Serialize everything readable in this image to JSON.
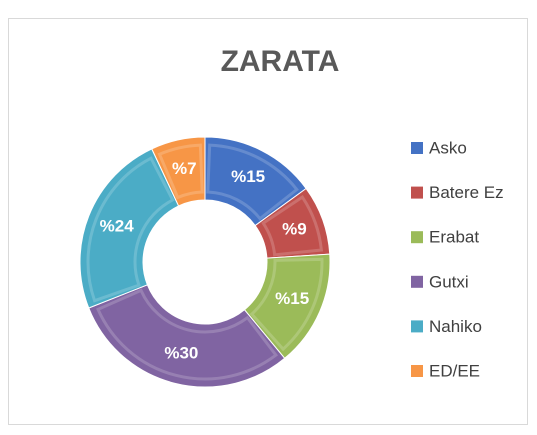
{
  "chart_data": {
    "type": "donut",
    "title": "ZARATA",
    "categories": [
      "Asko",
      "Batere Ez",
      "Erabat",
      "Gutxi",
      "Nahiko",
      "ED/EE"
    ],
    "values": [
      15,
      9,
      15,
      30,
      24,
      7
    ],
    "value_labels": [
      "%15",
      "%9",
      "%15",
      "%30",
      "%24",
      "%7"
    ],
    "colors": [
      "#4472c4",
      "#c0504d",
      "#9bbb59",
      "#8064a2",
      "#4bacc6",
      "#f79646"
    ],
    "legend": "right"
  }
}
